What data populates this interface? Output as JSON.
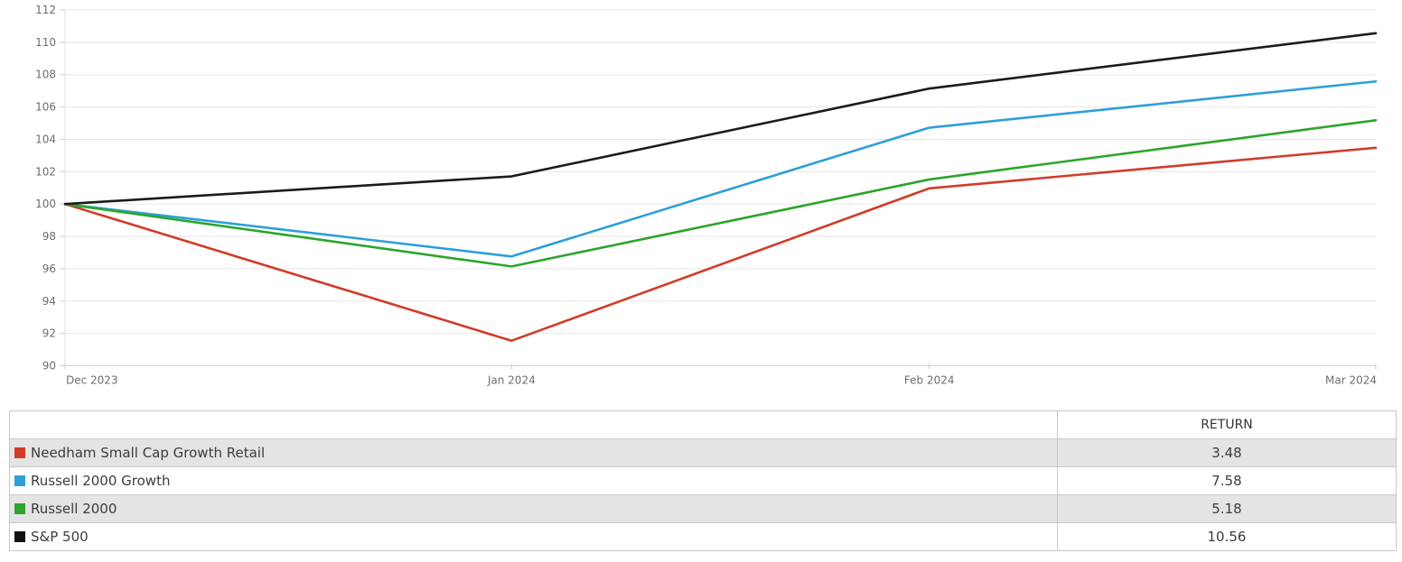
{
  "chart_data": {
    "type": "line",
    "title": "",
    "x_labels": [
      "Dec 2023",
      "Jan 2024",
      "Feb 2024",
      "Mar 2024"
    ],
    "x_day_offsets": [
      0,
      31,
      60,
      91
    ],
    "y_axis": {
      "min": 90,
      "max": 112,
      "step": 2
    },
    "grid": true,
    "legend_position": "table-below",
    "series": [
      {
        "name": "Needham Small Cap Growth Retail",
        "color": "#d13c28",
        "values": [
          100,
          91.55,
          100.97,
          103.48
        ]
      },
      {
        "name": "Russell 2000 Growth",
        "color": "#2d9fd9",
        "values": [
          100,
          96.76,
          104.72,
          107.58
        ]
      },
      {
        "name": "Russell 2000",
        "color": "#2ba52b",
        "values": [
          100,
          96.14,
          101.52,
          105.18
        ]
      },
      {
        "name": "S&P 500",
        "color": "#1b1b1b",
        "values": [
          100,
          101.71,
          107.14,
          110.56
        ]
      }
    ]
  },
  "table": {
    "columns": [
      "",
      "RETURN"
    ],
    "rows": [
      {
        "name": "Needham Small Cap Growth Retail",
        "color": "#d13c28",
        "return": "3.48"
      },
      {
        "name": "Russell 2000 Growth",
        "color": "#2d9fd9",
        "return": "7.58"
      },
      {
        "name": "Russell 2000",
        "color": "#2ba52b",
        "return": "5.18"
      },
      {
        "name": "S&P 500",
        "color": "#111111",
        "return": "10.56"
      }
    ]
  },
  "colors": {
    "gridline": "#e7e7e7",
    "axis_line": "#cfcfcf",
    "y_axis_line": "#e0e0e0",
    "tick": "#cfcfcf",
    "axis_text": "#6e6e6e",
    "table_shaded_row": "#e4e4e4"
  }
}
